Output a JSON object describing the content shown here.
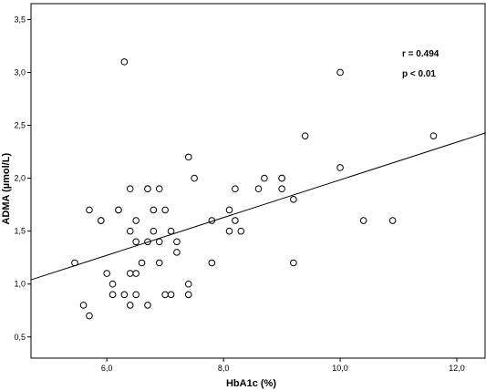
{
  "chart_data": {
    "type": "scatter",
    "title": "",
    "xlabel": "HbA1c (%)",
    "ylabel": "ADMA (µmol/L)",
    "xlim": [
      4.7,
      12.5
    ],
    "ylim": [
      0.3,
      3.65
    ],
    "xticks": [
      6.0,
      8.0,
      10.0,
      12.0
    ],
    "xtick_labels": [
      "6,0",
      "8,0",
      "10,0",
      "12,0"
    ],
    "yticks": [
      0.5,
      1.0,
      1.5,
      2.0,
      2.5,
      3.0,
      3.5
    ],
    "ytick_labels": [
      "0,5",
      "1,0",
      "1,5",
      "2,0",
      "2,5",
      "3,0",
      "3,5"
    ],
    "grid": false,
    "annotations": [
      "r = 0.494",
      "p < 0.01"
    ],
    "fit_line": {
      "x": [
        4.7,
        12.5
      ],
      "y": [
        1.04,
        2.43
      ]
    },
    "points": [
      [
        5.45,
        1.2
      ],
      [
        5.6,
        0.8
      ],
      [
        5.7,
        1.7
      ],
      [
        5.7,
        0.7
      ],
      [
        5.9,
        1.6
      ],
      [
        5.9,
        1.6
      ],
      [
        6.0,
        1.1
      ],
      [
        6.1,
        1.0
      ],
      [
        6.1,
        0.9
      ],
      [
        6.2,
        1.7
      ],
      [
        6.2,
        1.7
      ],
      [
        6.3,
        3.1
      ],
      [
        6.3,
        0.9
      ],
      [
        6.4,
        1.9
      ],
      [
        6.4,
        1.5
      ],
      [
        6.4,
        1.1
      ],
      [
        6.4,
        0.8
      ],
      [
        6.5,
        1.6
      ],
      [
        6.5,
        1.4
      ],
      [
        6.5,
        1.1
      ],
      [
        6.5,
        0.9
      ],
      [
        6.6,
        1.2
      ],
      [
        6.7,
        1.9
      ],
      [
        6.7,
        1.9
      ],
      [
        6.7,
        1.4
      ],
      [
        6.7,
        0.8
      ],
      [
        6.8,
        1.7
      ],
      [
        6.8,
        1.5
      ],
      [
        6.9,
        1.9
      ],
      [
        6.9,
        1.4
      ],
      [
        6.9,
        1.2
      ],
      [
        7.0,
        1.7
      ],
      [
        7.0,
        0.9
      ],
      [
        7.1,
        1.5
      ],
      [
        7.1,
        0.9
      ],
      [
        7.2,
        1.4
      ],
      [
        7.2,
        1.3
      ],
      [
        7.4,
        2.2
      ],
      [
        7.4,
        1.0
      ],
      [
        7.4,
        0.9
      ],
      [
        7.5,
        2.0
      ],
      [
        7.8,
        1.6
      ],
      [
        7.8,
        1.2
      ],
      [
        8.1,
        1.7
      ],
      [
        8.1,
        1.5
      ],
      [
        8.2,
        1.9
      ],
      [
        8.2,
        1.6
      ],
      [
        8.3,
        1.5
      ],
      [
        8.6,
        1.9
      ],
      [
        8.7,
        2.0
      ],
      [
        9.0,
        2.0
      ],
      [
        9.0,
        2.0
      ],
      [
        9.0,
        1.9
      ],
      [
        9.2,
        1.8
      ],
      [
        9.2,
        1.2
      ],
      [
        9.4,
        2.4
      ],
      [
        10.0,
        3.0
      ],
      [
        10.0,
        2.1
      ],
      [
        10.4,
        1.6
      ],
      [
        10.9,
        1.6
      ],
      [
        11.6,
        2.4
      ]
    ]
  }
}
